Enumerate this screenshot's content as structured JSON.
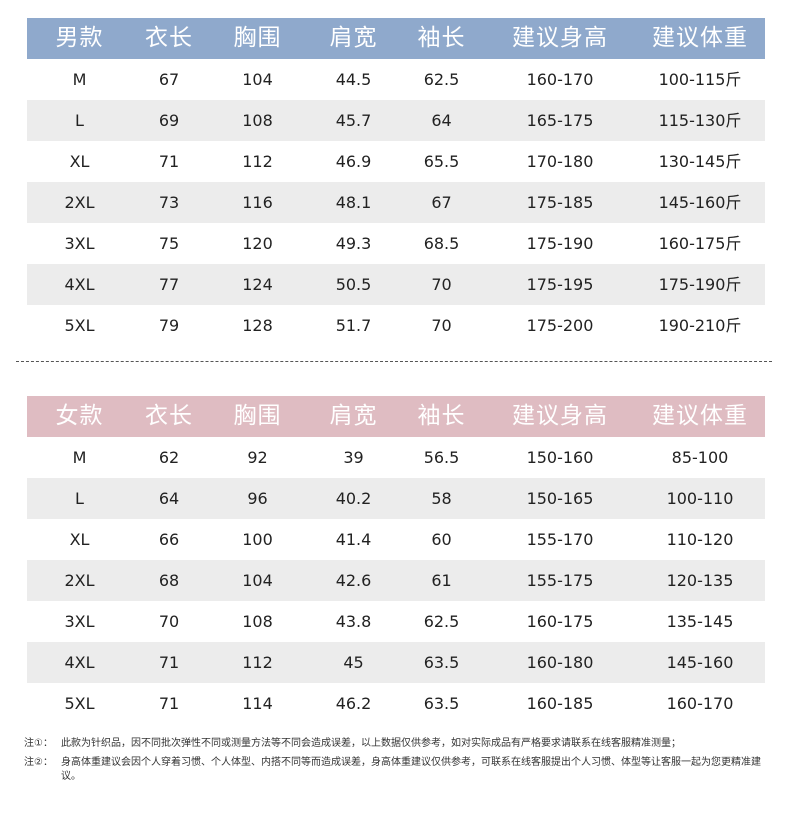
{
  "men": {
    "headers": [
      "男款",
      "衣长",
      "胸围",
      "肩宽",
      "袖长",
      "建议身高",
      "建议体重"
    ],
    "rows": [
      [
        "M",
        "67",
        "104",
        "44.5",
        "62.5",
        "160-170",
        "100-115斤"
      ],
      [
        "L",
        "69",
        "108",
        "45.7",
        "64",
        "165-175",
        "115-130斤"
      ],
      [
        "XL",
        "71",
        "112",
        "46.9",
        "65.5",
        "170-180",
        "130-145斤"
      ],
      [
        "2XL",
        "73",
        "116",
        "48.1",
        "67",
        "175-185",
        "145-160斤"
      ],
      [
        "3XL",
        "75",
        "120",
        "49.3",
        "68.5",
        "175-190",
        "160-175斤"
      ],
      [
        "4XL",
        "77",
        "124",
        "50.5",
        "70",
        "175-195",
        "175-190斤"
      ],
      [
        "5XL",
        "79",
        "128",
        "51.7",
        "70",
        "175-200",
        "190-210斤"
      ]
    ]
  },
  "women": {
    "headers": [
      "女款",
      "衣长",
      "胸围",
      "肩宽",
      "袖长",
      "建议身高",
      "建议体重"
    ],
    "rows": [
      [
        "M",
        "62",
        "92",
        "39",
        "56.5",
        "150-160",
        "85-100"
      ],
      [
        "L",
        "64",
        "96",
        "40.2",
        "58",
        "150-165",
        "100-110"
      ],
      [
        "XL",
        "66",
        "100",
        "41.4",
        "60",
        "155-170",
        "110-120"
      ],
      [
        "2XL",
        "68",
        "104",
        "42.6",
        "61",
        "155-175",
        "120-135"
      ],
      [
        "3XL",
        "70",
        "108",
        "43.8",
        "62.5",
        "160-175",
        "135-145"
      ],
      [
        "4XL",
        "71",
        "112",
        "45",
        "63.5",
        "160-180",
        "145-160"
      ],
      [
        "5XL",
        "71",
        "114",
        "46.2",
        "63.5",
        "160-185",
        "160-170"
      ]
    ]
  },
  "notes": [
    {
      "tag": "注①：",
      "text": "此款为针织品，因不同批次弹性不同或测量方法等不同会造成误差，以上数据仅供参考，如对实际成品有严格要求请联系在线客服精准测量；"
    },
    {
      "tag": "注②：",
      "text": "身高体重建议会因个人穿着习惯、个人体型、内搭不同等而造成误差，身高体重建议仅供参考，可联系在线客服提出个人习惯、体型等让客服一起为您更精准建议。"
    }
  ],
  "colors": {
    "men_header": "#8fa9cc",
    "women_header": "#dfbcc2",
    "row_shade": "#ececec"
  }
}
